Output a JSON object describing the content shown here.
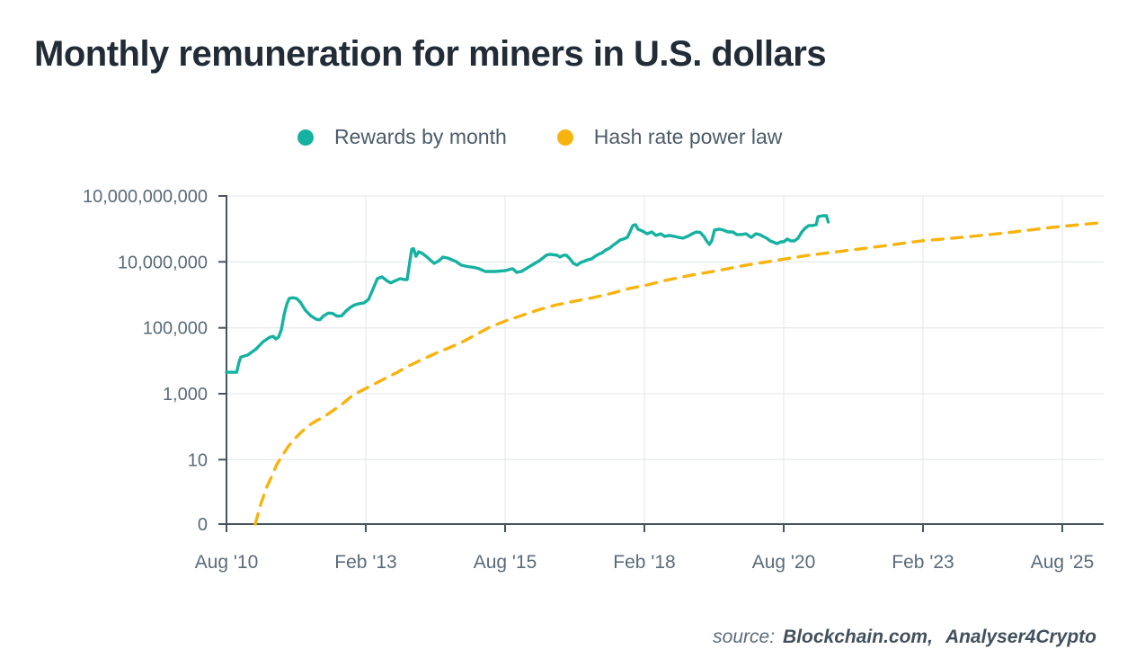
{
  "header": {
    "title": "Monthly remuneration for miners in U.S. dollars"
  },
  "legend": [
    {
      "label": "Rewards by month",
      "color": "#15b2a2"
    },
    {
      "label": "Hash rate power law",
      "color": "#f8b40e"
    }
  ],
  "source": {
    "prefix": "source:",
    "name1": "Blockchain.com,",
    "name2": "Analyser4Crypto"
  },
  "chart_data": {
    "type": "line",
    "title": "Monthly remuneration for miners in U.S. dollars",
    "xlabel": "",
    "ylabel": "",
    "legend_position": "top-center",
    "grid": true,
    "x_axis": {
      "unit": "months since Aug 2010",
      "range_months": [
        0,
        189
      ],
      "tick_months": [
        0,
        30,
        60,
        90,
        120,
        150,
        180
      ],
      "tick_labels": [
        "Aug '10",
        "Feb '13",
        "Aug '15",
        "Feb '18",
        "Aug '20",
        "Feb '23",
        "Aug '25"
      ]
    },
    "y_axis": {
      "scale": "log",
      "tick_values": [
        10000000000,
        10000000,
        100000,
        1000,
        10,
        0
      ],
      "tick_labels": [
        "10,000,000,000",
        "10,000,000",
        "100,000",
        "1,000",
        "10",
        "0"
      ]
    },
    "series": [
      {
        "name": "Rewards by month",
        "color": "#15b2a2",
        "style": "solid",
        "points": [
          [
            0,
            4500
          ],
          [
            2.2,
            4500
          ],
          [
            2.7,
            9000
          ],
          [
            3.1,
            13000
          ],
          [
            4.6,
            15000
          ],
          [
            6.4,
            23000
          ],
          [
            7.9,
            38000
          ],
          [
            9.3,
            52000
          ],
          [
            10.1,
            55000
          ],
          [
            10.6,
            46000
          ],
          [
            11.2,
            52000
          ],
          [
            11.8,
            87000
          ],
          [
            12.4,
            250000
          ],
          [
            13,
            530000
          ],
          [
            13.5,
            780000
          ],
          [
            14.3,
            820000
          ],
          [
            15.1,
            780000
          ],
          [
            15.9,
            600000
          ],
          [
            17,
            340000
          ],
          [
            18.2,
            230000
          ],
          [
            19.4,
            180000
          ],
          [
            20.1,
            176000
          ],
          [
            20.9,
            230000
          ],
          [
            21.9,
            280000
          ],
          [
            22.8,
            275000
          ],
          [
            23.8,
            226000
          ],
          [
            24.8,
            230000
          ],
          [
            25.7,
            320000
          ],
          [
            26.7,
            420000
          ],
          [
            27.7,
            500000
          ],
          [
            28.6,
            540000
          ],
          [
            29.6,
            570000
          ],
          [
            30.6,
            730000
          ],
          [
            31.5,
            1450000
          ],
          [
            32.5,
            3100000
          ],
          [
            33.5,
            3500000
          ],
          [
            34.5,
            2700000
          ],
          [
            35.4,
            2300000
          ],
          [
            36.4,
            2700000
          ],
          [
            37.4,
            3100000
          ],
          [
            38.3,
            2900000
          ],
          [
            38.9,
            2900000
          ],
          [
            39.5,
            11000000
          ],
          [
            39.9,
            38000000
          ],
          [
            40.3,
            40000000
          ],
          [
            40.8,
            18000000
          ],
          [
            41.4,
            29000000
          ],
          [
            42.2,
            24000000
          ],
          [
            43.2,
            16500000
          ],
          [
            44.7,
            9000000
          ],
          [
            45.7,
            11000000
          ],
          [
            46.6,
            16500000
          ],
          [
            47.6,
            15000000
          ],
          [
            49.4,
            10500000
          ],
          [
            50.5,
            8000000
          ],
          [
            51.9,
            7200000
          ],
          [
            53.2,
            6800000
          ],
          [
            54.4,
            6200000
          ],
          [
            55.7,
            5100000
          ],
          [
            58,
            5100000
          ],
          [
            60,
            5400000
          ],
          [
            61.6,
            6200000
          ],
          [
            62.5,
            4800000
          ],
          [
            63.5,
            5100000
          ],
          [
            64.5,
            6200000
          ],
          [
            65.4,
            7400000
          ],
          [
            66.4,
            9000000
          ],
          [
            67.4,
            11300000
          ],
          [
            68.9,
            20000000
          ],
          [
            69.7,
            22000000
          ],
          [
            71.2,
            20000000
          ],
          [
            71.8,
            16500000
          ],
          [
            72.6,
            20000000
          ],
          [
            73.2,
            20000000
          ],
          [
            74,
            13500000
          ],
          [
            74.7,
            9000000
          ],
          [
            75.5,
            8000000
          ],
          [
            76.3,
            9600000
          ],
          [
            77,
            10500000
          ],
          [
            77.8,
            12500000
          ],
          [
            78.6,
            13500000
          ],
          [
            79.4,
            18000000
          ],
          [
            80.1,
            22000000
          ],
          [
            80.9,
            26000000
          ],
          [
            81.7,
            35000000
          ],
          [
            82.5,
            42000000
          ],
          [
            83.2,
            56000000
          ],
          [
            84,
            74000000
          ],
          [
            84.8,
            100000000
          ],
          [
            85.5,
            110000000
          ],
          [
            86.3,
            130000000
          ],
          [
            86.9,
            230000000
          ],
          [
            87.5,
            450000000
          ],
          [
            88.1,
            490000000
          ],
          [
            88.6,
            310000000
          ],
          [
            89.6,
            250000000
          ],
          [
            90.6,
            190000000
          ],
          [
            91.6,
            230000000
          ],
          [
            92.5,
            160000000
          ],
          [
            93.5,
            190000000
          ],
          [
            94.4,
            145000000
          ],
          [
            95.4,
            160000000
          ],
          [
            96.4,
            145000000
          ],
          [
            97.4,
            130000000
          ],
          [
            98.3,
            120000000
          ],
          [
            99.3,
            145000000
          ],
          [
            100.3,
            190000000
          ],
          [
            101.2,
            230000000
          ],
          [
            102,
            220000000
          ],
          [
            102.8,
            145000000
          ],
          [
            103.4,
            90000000
          ],
          [
            104,
            62000000
          ],
          [
            104.5,
            90000000
          ],
          [
            105.1,
            280000000
          ],
          [
            106.1,
            310000000
          ],
          [
            107,
            280000000
          ],
          [
            108,
            230000000
          ],
          [
            109,
            230000000
          ],
          [
            109.9,
            175000000
          ],
          [
            110.9,
            175000000
          ],
          [
            111.9,
            190000000
          ],
          [
            113,
            130000000
          ],
          [
            114,
            190000000
          ],
          [
            114.8,
            175000000
          ],
          [
            115.5,
            145000000
          ],
          [
            116.3,
            120000000
          ],
          [
            117.1,
            90000000
          ],
          [
            118.1,
            74000000
          ],
          [
            118.6,
            68000000
          ],
          [
            119.4,
            82000000
          ],
          [
            120,
            82000000
          ],
          [
            120.8,
            110000000
          ],
          [
            121.5,
            90000000
          ],
          [
            122.3,
            90000000
          ],
          [
            123.1,
            120000000
          ],
          [
            123.9,
            230000000
          ],
          [
            124.6,
            340000000
          ],
          [
            125.4,
            450000000
          ],
          [
            126.2,
            450000000
          ],
          [
            127,
            490000000
          ],
          [
            127.4,
            1150000000
          ],
          [
            128.4,
            1260000000
          ],
          [
            129.2,
            1260000000
          ],
          [
            129.6,
            650000000
          ]
        ]
      },
      {
        "name": "Hash rate power law",
        "color": "#f8b40e",
        "style": "dashed",
        "points": [
          [
            6.2,
            0
          ],
          [
            7.4,
            0.45
          ],
          [
            8.7,
            1.5
          ],
          [
            9.7,
            3
          ],
          [
            10.8,
            7
          ],
          [
            12,
            13
          ],
          [
            13.3,
            25
          ],
          [
            14.7,
            43
          ],
          [
            16.2,
            70
          ],
          [
            17.8,
            110
          ],
          [
            19.3,
            150
          ],
          [
            20.9,
            195
          ],
          [
            22.8,
            300
          ],
          [
            24.8,
            470
          ],
          [
            27.3,
            930
          ],
          [
            29.6,
            1350
          ],
          [
            31.9,
            2000
          ],
          [
            34.1,
            2900
          ],
          [
            36.4,
            4200
          ],
          [
            39.3,
            7000
          ],
          [
            42.2,
            11000
          ],
          [
            45.1,
            17000
          ],
          [
            48,
            25000
          ],
          [
            50.9,
            38000
          ],
          [
            53.8,
            63000
          ],
          [
            56.7,
            105000
          ],
          [
            60,
            160000
          ],
          [
            63.5,
            235000
          ],
          [
            67.4,
            360000
          ],
          [
            71.2,
            500000
          ],
          [
            75.1,
            650000
          ],
          [
            79,
            830000
          ],
          [
            82.8,
            1100000
          ],
          [
            86.7,
            1550000
          ],
          [
            90.6,
            2000000
          ],
          [
            94.5,
            2750000
          ],
          [
            100.3,
            4000000
          ],
          [
            106.1,
            5500000
          ],
          [
            111.9,
            8000000
          ],
          [
            117.7,
            11000000
          ],
          [
            125.4,
            20000000
          ],
          [
            133.2,
            32000000
          ],
          [
            140.9,
            51000000
          ],
          [
            149.6,
            90000000
          ],
          [
            158.3,
            130000000
          ],
          [
            168,
            210000000
          ],
          [
            177.7,
            370000000
          ],
          [
            187.7,
            590000000
          ]
        ]
      }
    ]
  }
}
